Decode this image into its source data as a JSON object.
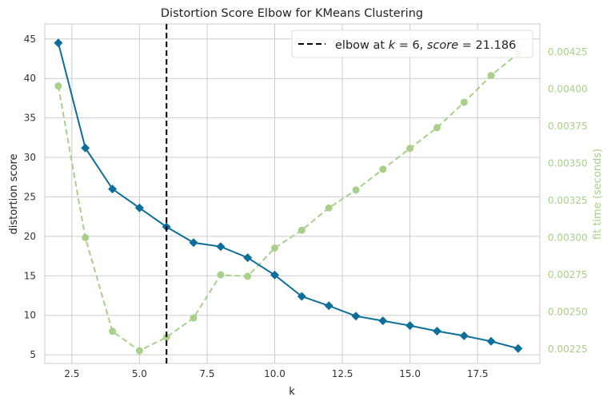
{
  "chart_data": {
    "type": "line",
    "title": "Distortion Score Elbow for KMeans Clustering",
    "xlabel": "k",
    "ylabel": "distortion score",
    "y2label": "fit time (seconds)",
    "xlim": [
      1.5,
      19.8
    ],
    "ylim": [
      3.9,
      46.9
    ],
    "y2lim": [
      0.002154,
      0.004437
    ],
    "x_ticks": [
      2.5,
      5.0,
      7.5,
      10.0,
      12.5,
      15.0,
      17.5
    ],
    "x_tick_labels": [
      "2.5",
      "5.0",
      "7.5",
      "10.0",
      "12.5",
      "15.0",
      "17.5"
    ],
    "y_ticks": [
      5,
      10,
      15,
      20,
      25,
      30,
      35,
      40,
      45
    ],
    "y_tick_labels": [
      "5",
      "10",
      "15",
      "20",
      "25",
      "30",
      "35",
      "40",
      "45"
    ],
    "y2_ticks": [
      0.00225,
      0.0025,
      0.00275,
      0.003,
      0.00325,
      0.0035,
      0.00375,
      0.004,
      0.00425
    ],
    "y2_tick_labels": [
      "0.00225",
      "0.00250",
      "0.00275",
      "0.00300",
      "0.00325",
      "0.00350",
      "0.00375",
      "0.00400",
      "0.00425"
    ],
    "grid": true,
    "legend_position": "top-right",
    "elbow": {
      "k": 6,
      "score": 21.186,
      "label_prefix": "elbow at ",
      "label_k_name": "k",
      "label_eq": " = 6, ",
      "label_score_name": "score",
      "label_score_value": " = 21.186"
    },
    "series": [
      {
        "name": "distortion score",
        "axis": "left",
        "color": "#0d6e9a",
        "marker": "diamond",
        "x": [
          2,
          3,
          4,
          5,
          6,
          7,
          8,
          9,
          10,
          11,
          12,
          13,
          14,
          15,
          16,
          17,
          18,
          19
        ],
        "values": [
          44.5,
          31.2,
          26.0,
          23.6,
          21.2,
          19.2,
          18.7,
          17.3,
          15.1,
          12.4,
          11.2,
          9.9,
          9.3,
          8.7,
          8.0,
          7.4,
          6.7,
          5.8
        ]
      },
      {
        "name": "fit time (seconds)",
        "axis": "right",
        "color": "#a9cf8b",
        "marker": "circle",
        "x": [
          2,
          3,
          4,
          5,
          6,
          7,
          8,
          9,
          10,
          11,
          12,
          13,
          14,
          15,
          16,
          17,
          18,
          19
        ],
        "values": [
          0.00402,
          0.003,
          0.00237,
          0.00224,
          0.00233,
          0.00246,
          0.00275,
          0.00274,
          0.00293,
          0.00305,
          0.0032,
          0.00332,
          0.00346,
          0.0036,
          0.00374,
          0.00391,
          0.00409,
          0.00424
        ]
      }
    ]
  }
}
